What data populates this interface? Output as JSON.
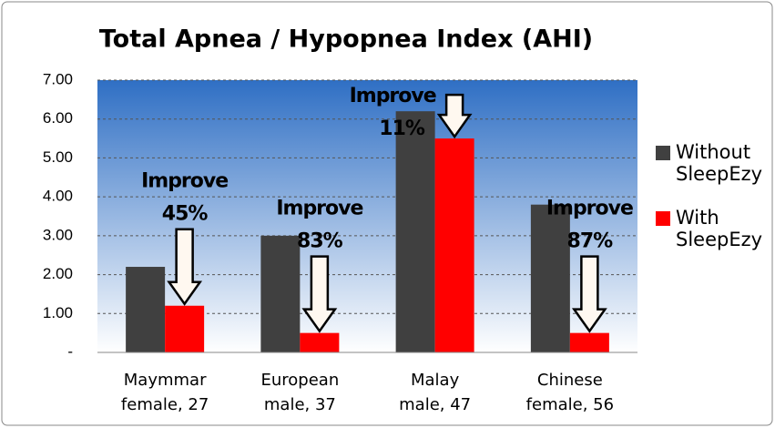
{
  "chart_data": {
    "type": "bar",
    "title": "Total Apnea / Hypopnea Index (AHI)",
    "categories": [
      [
        "Maymmar",
        "female, 27"
      ],
      [
        "European",
        "male, 37"
      ],
      [
        "Malay",
        "male, 47"
      ],
      [
        "Chinese",
        "female, 56"
      ]
    ],
    "series": [
      {
        "name": "Without SleepEzy",
        "color": "#404040",
        "values": [
          2.2,
          3.0,
          6.2,
          3.8
        ]
      },
      {
        "name": "With SleepEzy",
        "color": "#ff0000",
        "values": [
          1.2,
          0.5,
          5.5,
          0.5
        ]
      }
    ],
    "annotations": [
      {
        "label": "Improve",
        "percent": "45%"
      },
      {
        "label": "Improve",
        "percent": "83%"
      },
      {
        "label": "Improve",
        "percent": "11%"
      },
      {
        "label": "Improve",
        "percent": "87%"
      }
    ],
    "ylim": [
      0,
      7
    ],
    "yticks": [
      {
        "value": 0,
        "label": "-"
      },
      {
        "value": 1,
        "label": "1.00"
      },
      {
        "value": 2,
        "label": "2.00"
      },
      {
        "value": 3,
        "label": "3.00"
      },
      {
        "value": 4,
        "label": "4.00"
      },
      {
        "value": 5,
        "label": "5.00"
      },
      {
        "value": 6,
        "label": "6.00"
      },
      {
        "value": 7,
        "label": "7.00"
      }
    ],
    "grid": true,
    "legend": "right"
  }
}
